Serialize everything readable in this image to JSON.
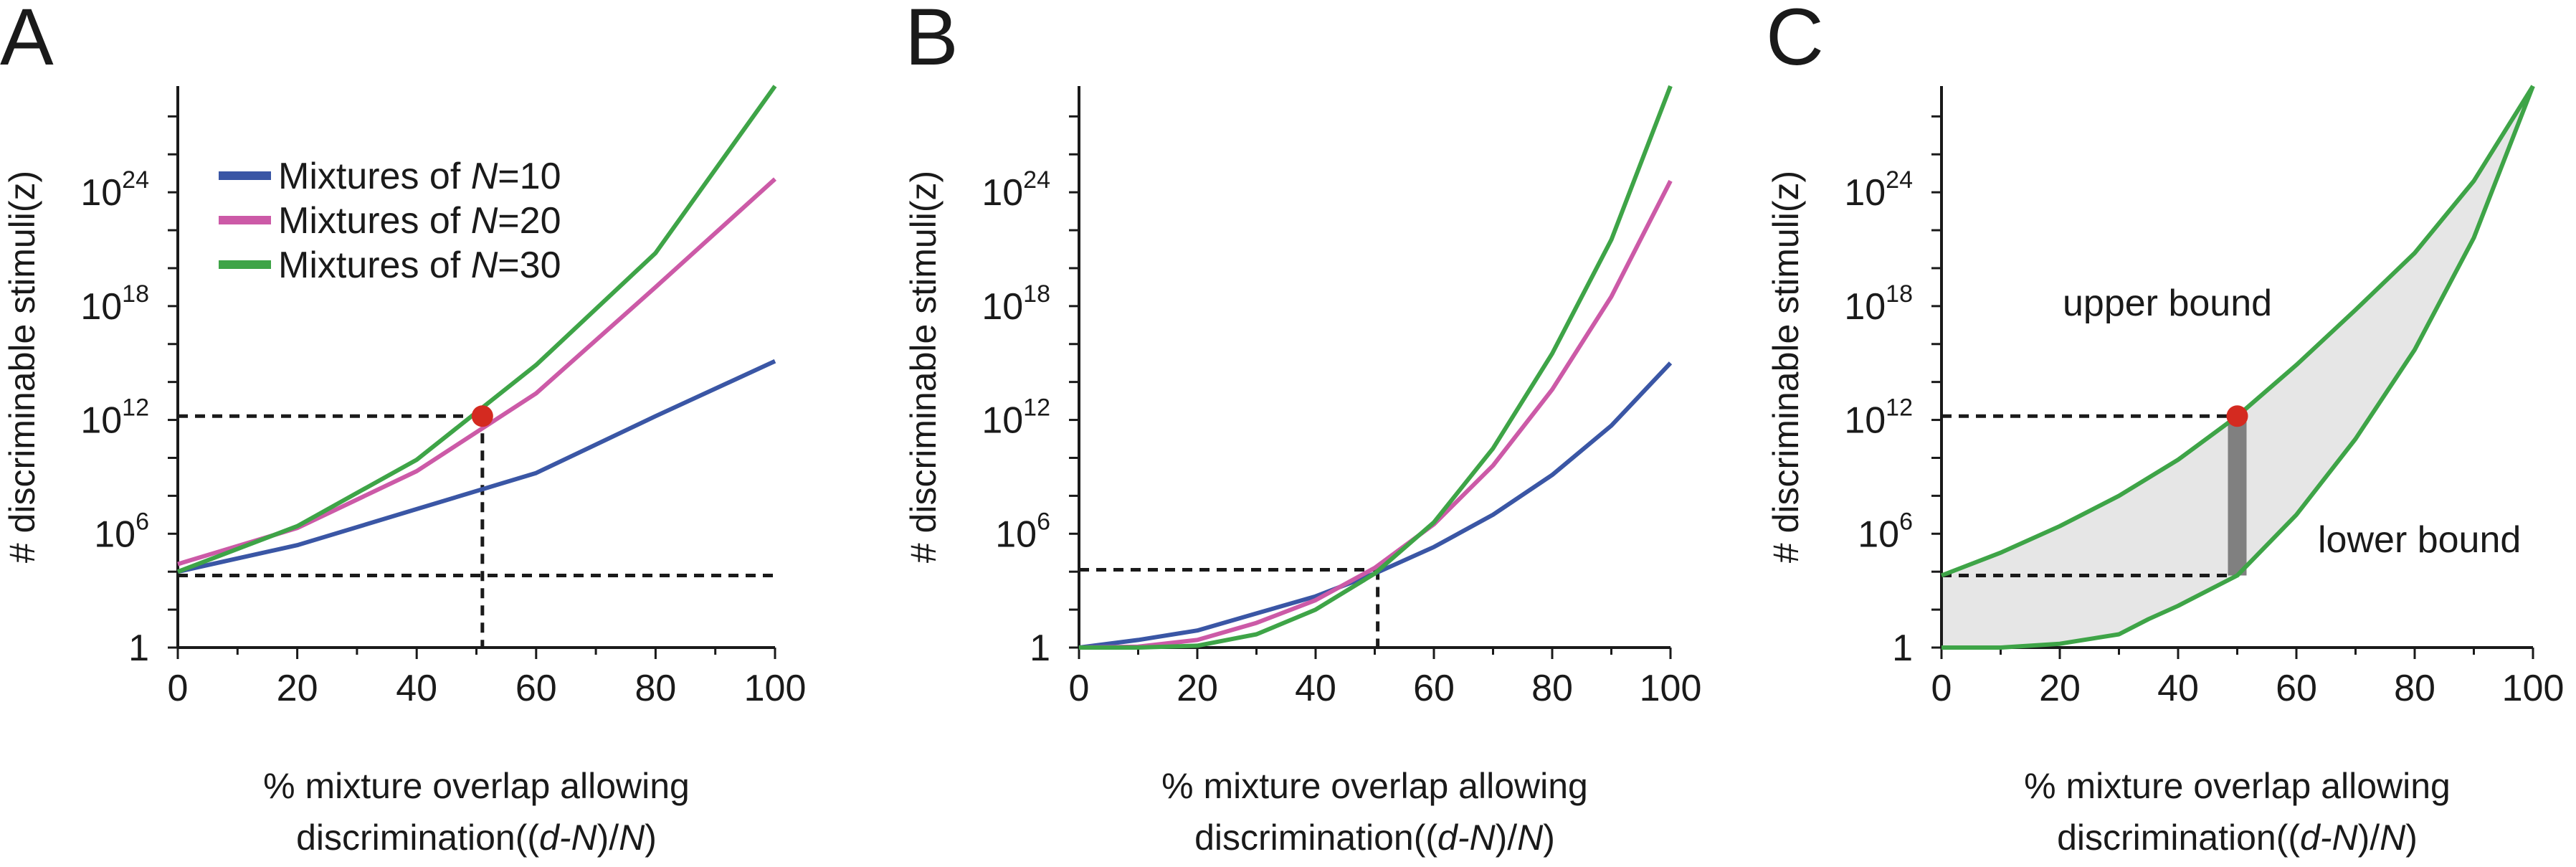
{
  "colors": {
    "n10": "#3a56a5",
    "n20": "#cc5aa7",
    "n30": "#3ea447",
    "dot": "#d42a20",
    "fill": "#e6e6e6",
    "bar": "#808080",
    "axis": "#1a1a1a"
  },
  "chart_data": [
    {
      "type": "line",
      "panel_label": "A",
      "xlabel_line1": "% mixture overlap allowing",
      "xlabel_line2_prefix": "discrimination((",
      "xlabel_line2_italic": "d-N",
      "xlabel_line2_mid": ")/",
      "xlabel_line2_italic2": "N",
      "xlabel_line2_suffix": ")",
      "ylabel": "# discriminable stimuli(z)",
      "xlim": [
        0,
        100
      ],
      "ylim_log10": [
        0,
        29.6
      ],
      "x_ticks": [
        "0",
        "20",
        "40",
        "60",
        "80",
        "100"
      ],
      "y_ticks": [
        {
          "base": "1",
          "exp": "",
          "log10": 0
        },
        {
          "base": "10",
          "exp": "6",
          "log10": 6
        },
        {
          "base": "10",
          "exp": "12",
          "log10": 12
        },
        {
          "base": "10",
          "exp": "18",
          "log10": 18
        },
        {
          "base": "10",
          "exp": "24",
          "log10": 24
        }
      ],
      "legend": [
        {
          "prefix": "Mixtures of ",
          "italic": "N",
          "suffix": "=10",
          "series": "n10"
        },
        {
          "prefix": "Mixtures of ",
          "italic": "N",
          "suffix": "=20",
          "series": "n20"
        },
        {
          "prefix": "Mixtures of ",
          "italic": "N",
          "suffix": "=30",
          "series": "n30"
        }
      ],
      "series": [
        {
          "name": "Mixtures of N=10",
          "color_key": "n10",
          "x": [
            0,
            20,
            40,
            60,
            80,
            100
          ],
          "log10_y": [
            4.0,
            5.4,
            7.3,
            9.2,
            12.2,
            15.1
          ]
        },
        {
          "name": "Mixtures of N=20",
          "color_key": "n20",
          "x": [
            0,
            20,
            40,
            60,
            80,
            100
          ],
          "log10_y": [
            4.4,
            6.3,
            9.3,
            13.4,
            19.0,
            24.7
          ]
        },
        {
          "name": "Mixtures of N=30",
          "color_key": "n30",
          "x": [
            0,
            20,
            40,
            60,
            80,
            100
          ],
          "log10_y": [
            4.0,
            6.4,
            9.9,
            14.9,
            20.8,
            29.6
          ]
        }
      ],
      "dashed_guides": [
        {
          "x": [
            0,
            51
          ],
          "log10_y": [
            12.2,
            12.2
          ]
        },
        {
          "x": [
            51,
            51
          ],
          "log10_y": [
            12.2,
            0
          ]
        },
        {
          "x": [
            0,
            100
          ],
          "log10_y": [
            3.8,
            3.8
          ]
        }
      ],
      "marker": {
        "x": 51,
        "log10_y": 12.2
      }
    },
    {
      "type": "line",
      "panel_label": "B",
      "xlabel_line1": "% mixture overlap allowing",
      "xlabel_line2_prefix": "discrimination((",
      "xlabel_line2_italic": "d-N",
      "xlabel_line2_mid": ")/",
      "xlabel_line2_italic2": "N",
      "xlabel_line2_suffix": ")",
      "ylabel": "# discriminable stimuli(z)",
      "xlim": [
        0,
        100
      ],
      "ylim_log10": [
        0,
        29.6
      ],
      "x_ticks": [
        "0",
        "20",
        "40",
        "60",
        "80",
        "100"
      ],
      "y_ticks": [
        {
          "base": "1",
          "exp": "",
          "log10": 0
        },
        {
          "base": "10",
          "exp": "6",
          "log10": 6
        },
        {
          "base": "10",
          "exp": "12",
          "log10": 12
        },
        {
          "base": "10",
          "exp": "18",
          "log10": 18
        },
        {
          "base": "10",
          "exp": "24",
          "log10": 24
        }
      ],
      "series": [
        {
          "name": "Mixtures of N=10",
          "color_key": "n10",
          "x": [
            0,
            10,
            20,
            30,
            40,
            50,
            60,
            70,
            80,
            90,
            100
          ],
          "log10_y": [
            0,
            0.4,
            0.9,
            1.8,
            2.7,
            3.9,
            5.3,
            7.0,
            9.1,
            11.7,
            15.0
          ]
        },
        {
          "name": "Mixtures of N=20",
          "color_key": "n20",
          "x": [
            0,
            10,
            20,
            30,
            40,
            50,
            60,
            70,
            80,
            90,
            100
          ],
          "log10_y": [
            0,
            0.05,
            0.4,
            1.3,
            2.5,
            4.2,
            6.5,
            9.6,
            13.6,
            18.5,
            24.6
          ]
        },
        {
          "name": "Mixtures of N=30",
          "color_key": "n30",
          "x": [
            0,
            10,
            20,
            30,
            40,
            50,
            60,
            70,
            80,
            90,
            100
          ],
          "log10_y": [
            0,
            0.0,
            0.1,
            0.7,
            2.0,
            3.9,
            6.6,
            10.5,
            15.5,
            21.5,
            29.6
          ]
        }
      ],
      "dashed_guides": [
        {
          "x": [
            0,
            50.5
          ],
          "log10_y": [
            4.1,
            4.1
          ]
        },
        {
          "x": [
            50.5,
            50.5
          ],
          "log10_y": [
            4.1,
            0
          ]
        }
      ]
    },
    {
      "type": "area",
      "panel_label": "C",
      "xlabel_line1": "% mixture overlap allowing",
      "xlabel_line2_prefix": "discrimination((",
      "xlabel_line2_italic": "d-N",
      "xlabel_line2_mid": ")/",
      "xlabel_line2_italic2": "N",
      "xlabel_line2_suffix": ")",
      "ylabel": "# discriminable stimuli(z)",
      "xlim": [
        0,
        100
      ],
      "ylim_log10": [
        0,
        29.6
      ],
      "x_ticks": [
        "0",
        "20",
        "40",
        "60",
        "80",
        "100"
      ],
      "y_ticks": [
        {
          "base": "1",
          "exp": "",
          "log10": 0
        },
        {
          "base": "10",
          "exp": "6",
          "log10": 6
        },
        {
          "base": "10",
          "exp": "12",
          "log10": 12
        },
        {
          "base": "10",
          "exp": "18",
          "log10": 18
        },
        {
          "base": "10",
          "exp": "24",
          "log10": 24
        }
      ],
      "series": [
        {
          "name": "upper bound",
          "color_key": "n30",
          "x": [
            0,
            10,
            20,
            30,
            40,
            50,
            60,
            70,
            80,
            90,
            100
          ],
          "log10_y": [
            3.8,
            5.0,
            6.4,
            8.0,
            9.9,
            12.2,
            14.9,
            17.8,
            20.8,
            24.6,
            29.6
          ]
        },
        {
          "name": "lower bound",
          "color_key": "n30",
          "x": [
            0,
            10,
            20,
            30,
            35,
            40,
            50,
            60,
            70,
            80,
            90,
            100
          ],
          "log10_y": [
            0,
            0,
            0.2,
            0.7,
            1.5,
            2.2,
            3.8,
            7.0,
            11.0,
            15.7,
            21.6,
            29.6
          ]
        }
      ],
      "annotations": [
        "upper bound",
        "lower bound"
      ],
      "dashed_guides": [
        {
          "x": [
            0,
            50
          ],
          "log10_y": [
            12.2,
            12.2
          ]
        },
        {
          "x": [
            0,
            50
          ],
          "log10_y": [
            3.8,
            3.8
          ]
        }
      ],
      "range_bar": {
        "x": 50,
        "log10_y": [
          3.8,
          12.2
        ]
      },
      "marker": {
        "x": 50,
        "log10_y": 12.2
      }
    }
  ]
}
